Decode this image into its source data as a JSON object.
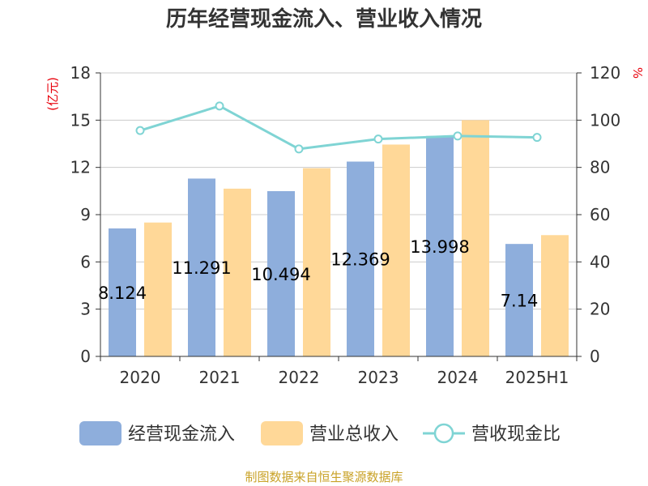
{
  "chart_data": {
    "type": "bar",
    "title": "历年经营现金流入、营业收入情况",
    "categories": [
      "2020",
      "2021",
      "2022",
      "2023",
      "2024",
      "2025H1"
    ],
    "series": [
      {
        "name": "经营现金流入",
        "type": "bar",
        "axis": "left",
        "color": "#8eaedc",
        "values": [
          8.124,
          11.291,
          10.494,
          12.369,
          13.998,
          7.14
        ]
      },
      {
        "name": "营业总收入",
        "type": "bar",
        "axis": "left",
        "color": "#ffd898",
        "values": [
          8.5,
          10.65,
          11.95,
          13.45,
          15.0,
          7.7
        ]
      },
      {
        "name": "营收现金比",
        "type": "line",
        "axis": "right",
        "color": "#7fd4d4",
        "values": [
          95.6,
          106.0,
          87.8,
          92.0,
          93.3,
          92.7
        ]
      }
    ],
    "data_labels": [
      "8.124",
      "11.291",
      "10.494",
      "12.369",
      "13.998",
      "7.14"
    ],
    "y_left": {
      "unit": "(亿元)",
      "ylim": [
        0,
        18
      ],
      "ticks": [
        0,
        3,
        6,
        9,
        12,
        15,
        18
      ]
    },
    "y_right": {
      "unit": "%",
      "ylim": [
        0,
        120
      ],
      "ticks": [
        0,
        20,
        40,
        60,
        80,
        100,
        120
      ]
    },
    "grid": true,
    "legend_position": "bottom",
    "source": "制图数据来自恒生聚源数据库"
  }
}
